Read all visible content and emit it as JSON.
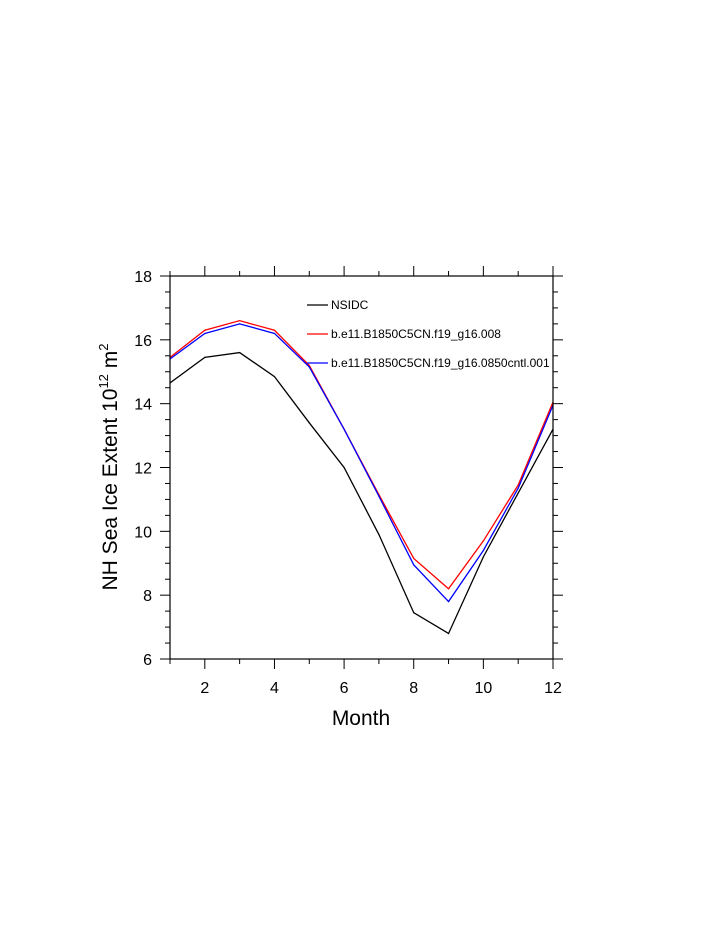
{
  "chart_data": {
    "type": "line",
    "title": "",
    "xlabel": "Month",
    "ylabel": "NH Sea Ice Extent 10",
    "ylabel_sup": "12",
    "ylabel_unit": " m",
    "ylabel_unit_sup": "2",
    "xlim": [
      1,
      12
    ],
    "ylim": [
      6,
      18
    ],
    "x_ticks": [
      2,
      4,
      6,
      8,
      10,
      12
    ],
    "y_ticks": [
      6,
      8,
      10,
      12,
      14,
      16,
      18
    ],
    "grid": false,
    "legend_position": "top-right",
    "x": [
      1,
      2,
      3,
      4,
      5,
      6,
      7,
      8,
      9,
      10,
      11,
      12
    ],
    "series": [
      {
        "name": "NSIDC",
        "color": "#000000",
        "values": [
          14.65,
          15.45,
          15.6,
          14.85,
          13.4,
          12.0,
          9.9,
          7.45,
          6.8,
          9.2,
          11.2,
          13.2
        ]
      },
      {
        "name": "b.e11.B1850C5CN.f19_g16.008",
        "color": "#ff0000",
        "values": [
          15.45,
          16.3,
          16.6,
          16.3,
          15.2,
          13.2,
          11.15,
          9.15,
          8.2,
          9.7,
          11.45,
          14.05
        ]
      },
      {
        "name": "b.e11.B1850C5CN.f19_g16.0850cntl.001",
        "color": "#0000ff",
        "values": [
          15.4,
          16.2,
          16.5,
          16.2,
          15.15,
          13.2,
          11.1,
          8.95,
          7.8,
          9.4,
          11.35,
          13.95
        ]
      }
    ]
  }
}
